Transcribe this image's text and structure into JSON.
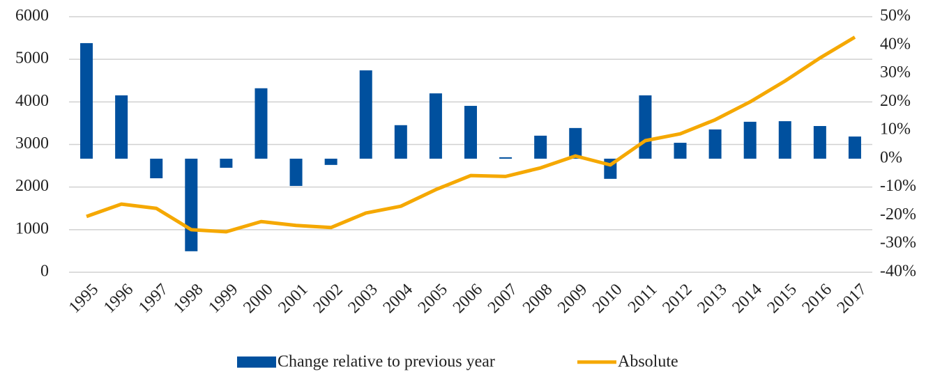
{
  "chart_data": {
    "type": "bar_line",
    "categories": [
      "1995",
      "1996",
      "1997",
      "1998",
      "1999",
      "2000",
      "2001",
      "2002",
      "2003",
      "2004",
      "2005",
      "2006",
      "2007",
      "2008",
      "2009",
      "2010",
      "2011",
      "2012",
      "2013",
      "2014",
      "2015",
      "2016",
      "2017"
    ],
    "series": [
      {
        "name": "Change relative to previous year",
        "type": "bar",
        "axis": "y2",
        "color": "#00509e",
        "values": [
          40.7,
          22.3,
          -6.9,
          -32.6,
          -3.2,
          24.8,
          -9.6,
          -2.2,
          31.1,
          11.8,
          23.0,
          18.6,
          0.5,
          8.1,
          10.8,
          -7.1,
          22.3,
          5.6,
          10.3,
          13.0,
          13.2,
          11.5,
          7.8
        ]
      },
      {
        "name": "Absolute",
        "type": "line",
        "axis": "y",
        "color": "#f5a800",
        "values": [
          1310,
          1600,
          1500,
          1000,
          950,
          1190,
          1100,
          1050,
          1390,
          1550,
          1940,
          2270,
          2250,
          2450,
          2730,
          2520,
          3090,
          3250,
          3580,
          4000,
          4490,
          5030,
          5520
        ]
      }
    ],
    "ylim": [
      0,
      6000
    ],
    "yticks": [
      0,
      1000,
      2000,
      3000,
      4000,
      5000,
      6000
    ],
    "y2lim": [
      -40,
      50
    ],
    "y2ticks": [
      {
        "value": -40,
        "label": "-40%"
      },
      {
        "value": -30,
        "label": "-30%"
      },
      {
        "value": -20,
        "label": "-20%"
      },
      {
        "value": -10,
        "label": "-10%"
      },
      {
        "value": 0,
        "label": "0%"
      },
      {
        "value": 10,
        "label": "10%"
      },
      {
        "value": 20,
        "label": "20%"
      },
      {
        "value": 30,
        "label": "30%"
      },
      {
        "value": 40,
        "label": "40%"
      },
      {
        "value": 50,
        "label": "50%"
      }
    ],
    "grid": true
  }
}
